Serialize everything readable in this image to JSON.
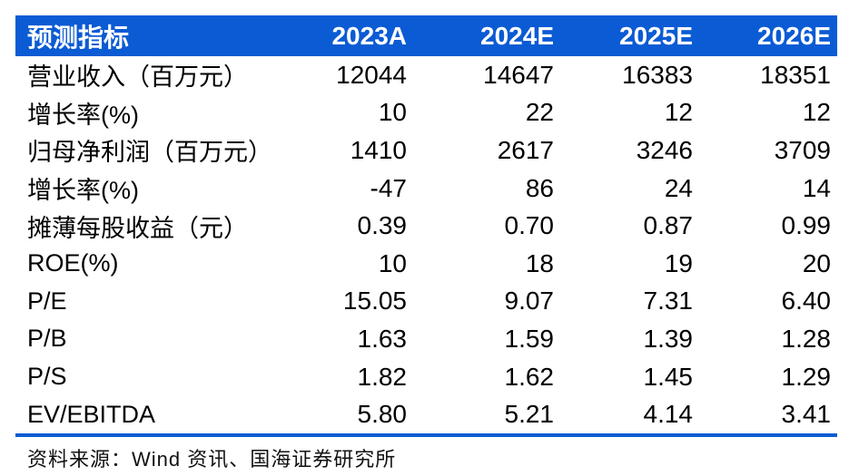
{
  "table": {
    "columns": [
      "预测指标",
      "2023A",
      "2024E",
      "2025E",
      "2026E"
    ],
    "rows": [
      {
        "label": "营业收入（百万元）",
        "values": [
          "12044",
          "14647",
          "16383",
          "18351"
        ]
      },
      {
        "label": "增长率(%)",
        "values": [
          "10",
          "22",
          "12",
          "12"
        ]
      },
      {
        "label": "归母净利润（百万元）",
        "values": [
          "1410",
          "2617",
          "3246",
          "3709"
        ]
      },
      {
        "label": "增长率(%)",
        "values": [
          "-47",
          "86",
          "24",
          "14"
        ]
      },
      {
        "label": "摊薄每股收益（元）",
        "values": [
          "0.39",
          "0.70",
          "0.87",
          "0.99"
        ]
      },
      {
        "label": "ROE(%)",
        "values": [
          "10",
          "18",
          "19",
          "20"
        ]
      },
      {
        "label": "P/E",
        "values": [
          "15.05",
          "9.07",
          "7.31",
          "6.40"
        ]
      },
      {
        "label": "P/B",
        "values": [
          "1.63",
          "1.59",
          "1.39",
          "1.28"
        ]
      },
      {
        "label": "P/S",
        "values": [
          "1.82",
          "1.62",
          "1.45",
          "1.29"
        ]
      },
      {
        "label": "EV/EBITDA",
        "values": [
          "5.80",
          "5.21",
          "4.14",
          "3.41"
        ]
      }
    ],
    "source_note": "资料来源：Wind 资讯、国海证券研究所"
  },
  "colors": {
    "header_bg": "#0B5BD4",
    "header_text": "#FFFFFF",
    "body_text": "#000000",
    "rule": "#0B5BD4",
    "page_bg": "#FFFFFF"
  }
}
